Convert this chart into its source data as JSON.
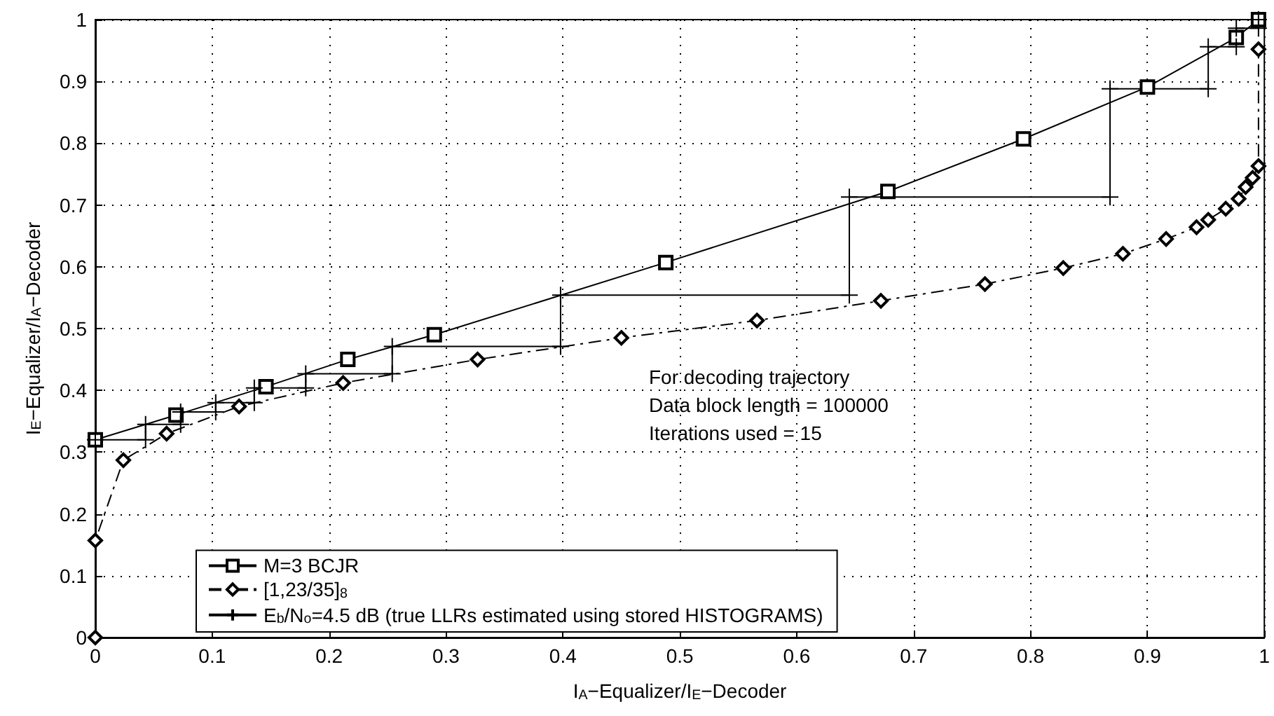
{
  "chart_data": {
    "type": "line",
    "xlabel": "I$_{A}$−Equalizer/I$_{E}$−Decoder",
    "ylabel": "I$_{E}$−Equalizer/I$_{A}$−Decoder",
    "xlim": [
      0,
      1
    ],
    "ylim": [
      0,
      1
    ],
    "xticks": [
      0,
      0.1,
      0.2,
      0.3,
      0.4,
      0.5,
      0.6,
      0.7,
      0.8,
      0.9,
      1
    ],
    "yticks": [
      0,
      0.1,
      0.2,
      0.3,
      0.4,
      0.5,
      0.6,
      0.7,
      0.8,
      0.9,
      1
    ],
    "grid": true,
    "legend": "bottom left",
    "annotations": [
      "For decoding trajectory",
      "Data block length = 100000",
      "Iterations used = 15"
    ],
    "series": [
      {
        "name": "M=3 BCJR",
        "color": "#000000",
        "marker": "square",
        "line_style": "solid",
        "x": [
          0,
          0.069,
          0.146,
          0.216,
          0.29,
          0.488,
          0.678,
          0.794,
          0.9,
          0.976,
          0.995
        ],
        "values": [
          0.32,
          0.36,
          0.406,
          0.45,
          0.49,
          0.607,
          0.722,
          0.807,
          0.891,
          0.971,
          1.0
        ]
      },
      {
        "name": "[1,23/35]$_{8}$",
        "color": "#000000",
        "marker": "diamond",
        "line_style": "dashed",
        "x": [
          0,
          0,
          0.024,
          0.061,
          0.123,
          0.212,
          0.327,
          0.45,
          0.566,
          0.672,
          0.761,
          0.828,
          0.879,
          0.916,
          0.942,
          0.952,
          0.967,
          0.978,
          0.984,
          0.99,
          0.995,
          0.995
        ],
        "values": [
          0,
          0.157,
          0.287,
          0.33,
          0.374,
          0.412,
          0.45,
          0.485,
          0.513,
          0.545,
          0.572,
          0.598,
          0.621,
          0.645,
          0.664,
          0.676,
          0.694,
          0.71,
          0.729,
          0.744,
          0.763,
          0.952
        ]
      },
      {
        "name": "E$_{b}$/N$_{o}$=4.5 dB (true LLRs estimated using stored HISTOGRAMS)",
        "color": "#000000",
        "marker": "cross",
        "line_style": "solid",
        "x": [
          0,
          0.043,
          0.043,
          0.073,
          0.073,
          0.103,
          0.103,
          0.136,
          0.136,
          0.18,
          0.18,
          0.254,
          0.254,
          0.398,
          0.398,
          0.645,
          0.645,
          0.868,
          0.868,
          0.952,
          0.952,
          0.976,
          0.976,
          0.995,
          0.995
        ],
        "values": [
          0.32,
          0.32,
          0.345,
          0.345,
          0.365,
          0.365,
          0.38,
          0.38,
          0.404,
          0.404,
          0.427,
          0.427,
          0.471,
          0.471,
          0.554,
          0.554,
          0.713,
          0.713,
          0.888,
          0.888,
          0.956,
          0.956,
          0.986,
          0.986,
          1.0
        ]
      }
    ]
  }
}
